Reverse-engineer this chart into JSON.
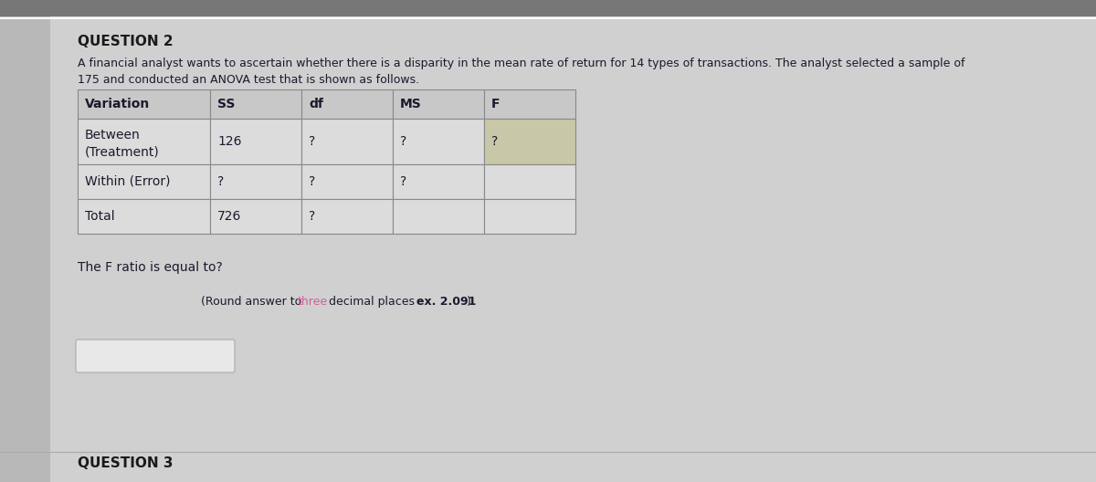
{
  "title": "QUESTION 2",
  "question3_title": "QUESTION 3",
  "paragraph_line1": "A financial analyst wants to ascertain whether there is a disparity in the mean rate of return for 14 types of transactions. The analyst selected a sample of",
  "paragraph_line2": "175 and conducted an ANOVA test that is shown as follows.",
  "table_headers": [
    "Variation",
    "SS",
    "df",
    "MS",
    "F"
  ],
  "table_rows": [
    [
      "Between\n(Treatment)",
      "126",
      "?",
      "?",
      "?"
    ],
    [
      "Within (Error)",
      "?",
      "?",
      "?",
      ""
    ],
    [
      "Total",
      "726",
      "?",
      "",
      ""
    ]
  ],
  "question_text": "The F ratio is equal to?",
  "round_note_plain1": "(Round answer to ",
  "round_note_colored": "three",
  "round_note_plain2": " decimal places ",
  "round_note_bold": "ex. 2.091",
  "round_note_end": ")",
  "colored_word_color": "#d4609a",
  "bg_color_left": "#b8b8b8",
  "bg_color_main": "#d0d0d0",
  "table_header_bg": "#c8c8c8",
  "table_cell_bg": "#dcdcdc",
  "table_highlight_bg": "#c8c8a8",
  "table_border_color": "#888888",
  "text_color": "#1a1a2e",
  "title_color": "#1a1a1a",
  "font_size_title": 11,
  "font_size_text": 10,
  "font_size_table": 10,
  "input_box_bg": "#e8e8e8",
  "input_box_border": "#aaaaaa",
  "separator_color": "#aaaaaa",
  "top_stripe_color": "#999999"
}
